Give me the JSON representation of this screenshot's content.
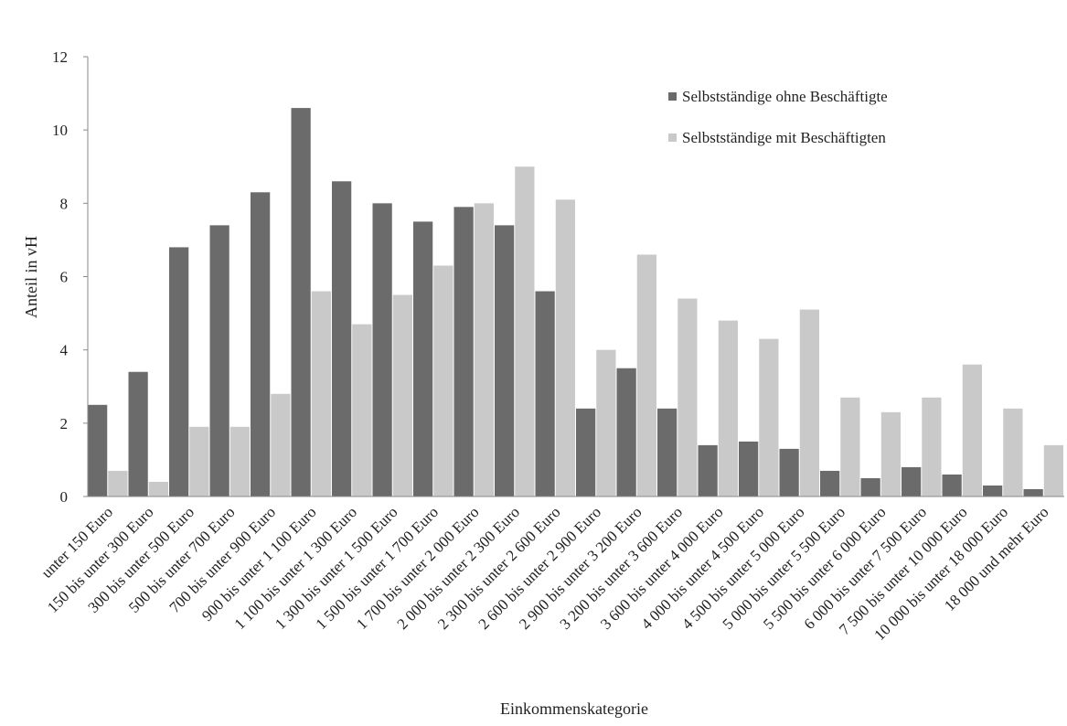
{
  "chart_data": {
    "type": "bar",
    "title": "",
    "xlabel": "Einkommenskategorie",
    "ylabel": "Anteil in vH",
    "ylim": [
      0,
      12
    ],
    "yticks": [
      "0",
      "2",
      "4",
      "6",
      "8",
      "10",
      "12"
    ],
    "grid": false,
    "legend_position": "top-right",
    "categories": [
      "unter 150 Euro",
      "150 bis unter 300 Euro",
      "300 bis unter 500 Euro",
      "500 bis unter 700 Euro",
      "700 bis unter 900 Euro",
      "900 bis unter 1 100 Euro",
      "1 100 bis unter 1 300 Euro",
      "1 300 bis unter 1 500 Euro",
      "1 500 bis unter 1 700 Euro",
      "1 700 bis unter 2 000 Euro",
      "2 000 bis unter 2 300 Euro",
      "2 300 bis unter 2 600 Euro",
      "2 600 bis unter 2 900 Euro",
      "2 900 bis unter 3 200 Euro",
      "3 200 bis unter 3 600 Euro",
      "3 600 bis unter 4 000 Euro",
      "4 000 bis unter 4 500 Euro",
      "4 500 bis unter 5 000 Euro",
      "5 000 bis unter 5 500 Euro",
      "5 500 bis unter 6 000 Euro",
      "6 000 bis unter 7 500 Euro",
      "7 500 bis unter 10 000 Euro",
      "10 000 bis unter 18 000 Euro",
      "18 000 und mehr Euro"
    ],
    "series": [
      {
        "name": "Selbstständige ohne Beschäftigte",
        "color": "#6b6b6b",
        "values": [
          2.5,
          3.4,
          6.8,
          7.4,
          8.3,
          10.6,
          8.6,
          8.0,
          7.5,
          7.9,
          7.4,
          5.6,
          2.4,
          3.5,
          2.4,
          1.4,
          1.5,
          1.3,
          0.7,
          0.5,
          0.8,
          0.6,
          0.3,
          0.2
        ]
      },
      {
        "name": "Selbstständige mit Beschäftigten",
        "color": "#c9c9c9",
        "values": [
          0.7,
          0.4,
          1.9,
          1.9,
          2.8,
          5.6,
          4.7,
          5.5,
          6.3,
          8.0,
          9.0,
          8.1,
          4.0,
          6.6,
          5.4,
          4.8,
          4.3,
          5.1,
          2.7,
          2.3,
          2.7,
          3.6,
          2.4,
          1.4
        ]
      }
    ]
  }
}
